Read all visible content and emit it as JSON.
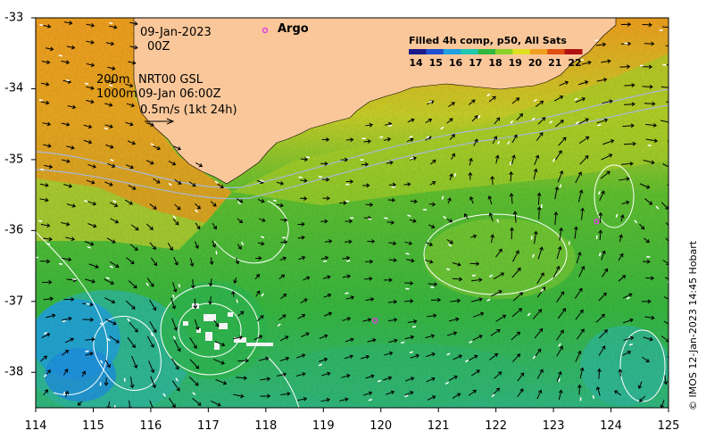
{
  "map": {
    "lon_ticks": [
      "114",
      "115",
      "116",
      "117",
      "118",
      "119",
      "120",
      "121",
      "122",
      "123",
      "124",
      "125"
    ],
    "lat_ticks": [
      "-33",
      "-34",
      "-35",
      "-36",
      "-37",
      "-38"
    ],
    "lon_range": [
      114,
      125
    ],
    "lat_range": [
      -38.5,
      -33
    ]
  },
  "annotations": {
    "date": "09-Jan-2023",
    "time": "00Z",
    "contour_200": "200m",
    "contour_1000": "1000m",
    "current_product": "NRT00 GSL",
    "current_time": "09-Jan 06:00Z",
    "scale_vector": "0.5m/s (1kt 24h)",
    "argo_label": "Argo"
  },
  "colorbar": {
    "title": "Filled 4h comp, p50, All Sats",
    "ticks": [
      "14",
      "15",
      "16",
      "17",
      "18",
      "19",
      "20",
      "21",
      "22"
    ],
    "colors": [
      "#1a1a8c",
      "#1f4fd0",
      "#1fa0e0",
      "#20c8b0",
      "#30b840",
      "#8cd028",
      "#e0e020",
      "#f0a020",
      "#e05010",
      "#b01010"
    ]
  },
  "argo_floats": [
    {
      "lon": 123.75,
      "lat": -35.87
    },
    {
      "lon": 119.9,
      "lat": -37.27
    }
  ],
  "credit": "© IMOS 12-Jan-2023 14:45 Hobart",
  "colors": {
    "land": "#f9c79a",
    "argo": "#e040e0"
  }
}
